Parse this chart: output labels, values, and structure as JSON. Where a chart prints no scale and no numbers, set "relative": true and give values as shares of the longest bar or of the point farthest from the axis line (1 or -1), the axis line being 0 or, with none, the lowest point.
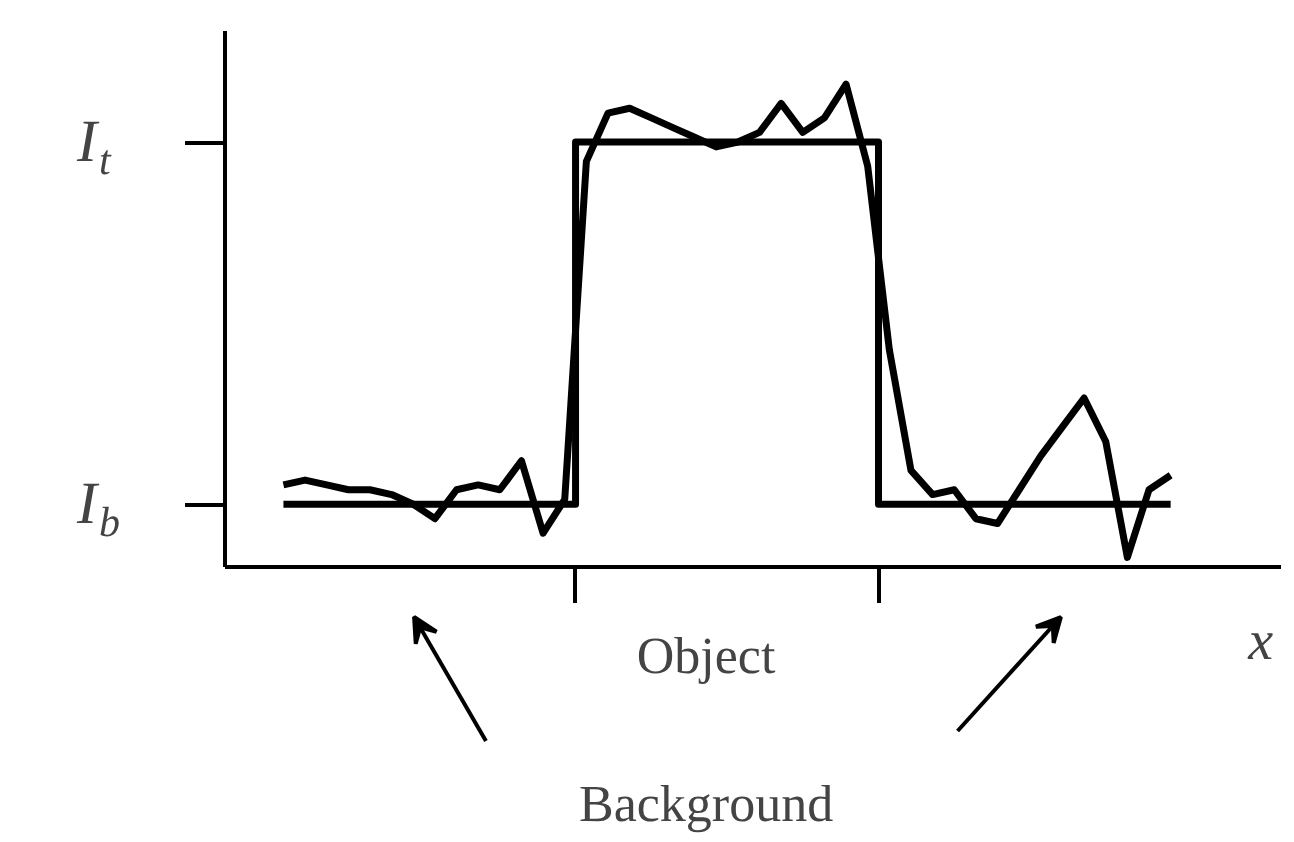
{
  "chart_data": {
    "type": "line",
    "relative": true,
    "xlabel": "x",
    "annotations": [
      "Object",
      "Background",
      "I$_{b}$",
      "I$_{t}$"
    ],
    "categories": [
      null,
      null,
      null,
      null,
      null,
      null,
      null,
      null,
      null,
      null,
      null,
      null,
      null,
      null,
      null,
      null,
      null,
      null,
      null,
      null,
      null,
      null,
      null,
      null,
      null,
      null,
      null,
      null,
      null,
      null,
      null,
      null,
      null,
      null,
      null,
      null,
      null,
      null,
      null,
      null,
      null,
      null
    ],
    "grid": false,
    "marker": "none",
    "line_style": "solid",
    "series": [
      {
        "type": "step",
        "color": "#000000",
        "values": [
          0.13,
          0.13,
          0.13,
          0.13,
          0.13,
          0.13,
          0.13,
          0.13,
          0.13,
          0.13,
          0.13,
          0.13,
          0.13,
          0.13,
          0.88,
          0.88,
          0.88,
          0.88,
          0.88,
          0.88,
          0.88,
          0.88,
          0.88,
          0.88,
          0.88,
          0.88,
          0.88,
          0.88,
          0.13,
          0.13,
          0.13,
          0.13,
          0.13,
          0.13,
          0.13,
          0.13,
          0.13,
          0.13,
          0.13,
          0.13,
          0.13,
          0.13
        ]
      },
      {
        "color": "#000000",
        "values": [
          0.17,
          0.18,
          0.17,
          0.16,
          0.16,
          0.15,
          0.13,
          0.1,
          0.16,
          0.17,
          0.16,
          0.22,
          0.07,
          0.14,
          0.84,
          0.94,
          0.95,
          0.93,
          0.91,
          0.89,
          0.87,
          0.88,
          0.9,
          0.96,
          0.9,
          0.93,
          1.0,
          0.83,
          0.45,
          0.2,
          0.15,
          0.16,
          0.1,
          0.09,
          0.16,
          0.23,
          0.29,
          0.35,
          0.26,
          0.02,
          0.16,
          0.19
        ]
      }
    ]
  }
}
